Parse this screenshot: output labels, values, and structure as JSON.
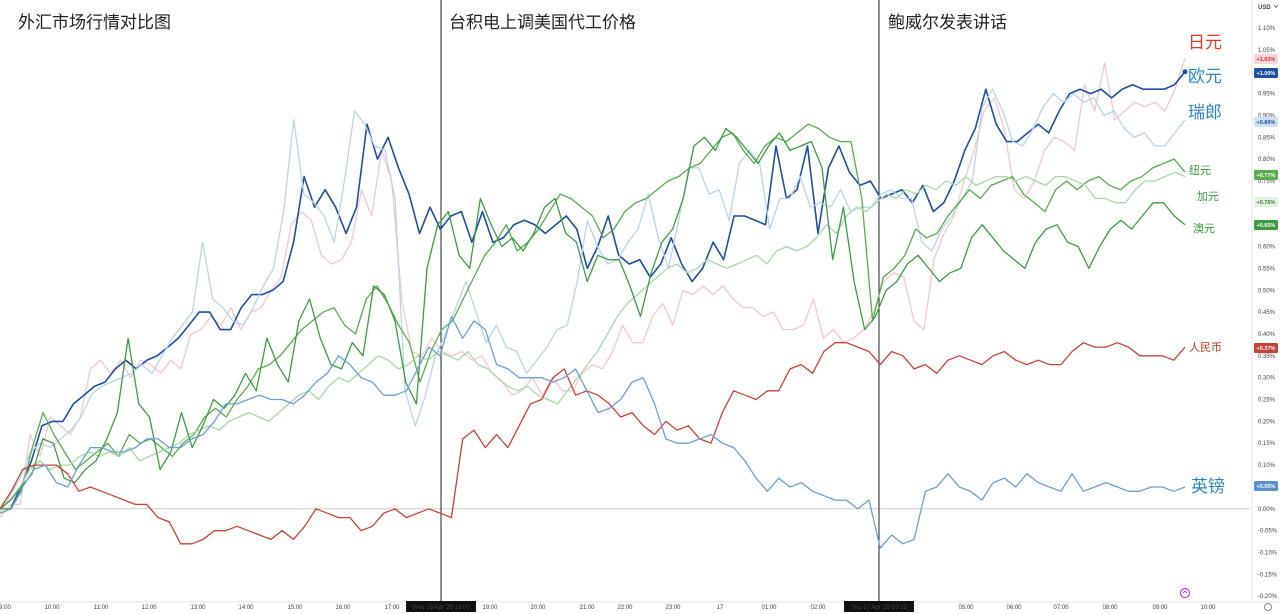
{
  "chart_data": {
    "type": "line",
    "panels": [
      {
        "title": "外汇市场行情对比图"
      },
      {
        "title": "台积电上调美国代工价格"
      },
      {
        "title": "鲍威尔发表讲话"
      }
    ],
    "currency_label": "USD",
    "y_ticks": [
      "1.10%",
      "1.05%",
      "1.00%",
      "0.95%",
      "0.90%",
      "0.85%",
      "0.80%",
      "0.75%",
      "0.70%",
      "0.65%",
      "0.60%",
      "0.55%",
      "0.50%",
      "0.45%",
      "0.40%",
      "0.35%",
      "0.30%",
      "0.25%",
      "0.20%",
      "0.15%",
      "0.10%",
      "0.05%",
      "0.00%",
      "-0.05%",
      "-0.10%",
      "-0.15%",
      "-0.20%"
    ],
    "ylim": [
      -0.2,
      1.1
    ],
    "x_ticks": [
      "9:00",
      "10:00",
      "11:00",
      "12:00",
      "13:00",
      "14:00",
      "15:00",
      "16:00",
      "17:00",
      "Wed 16 Apr '25 18:00",
      "19:00",
      "20:00",
      "21:00",
      "22:00",
      "23:00",
      "17",
      "01:00",
      "02:00",
      "Thu 17 Apr '25 03:15",
      "05:00",
      "06:00",
      "07:00",
      "08:00",
      "09:00",
      "10:00"
    ],
    "x_ticks_highlight": [
      9,
      18
    ],
    "series": [
      {
        "name": "日元",
        "color": "#f4c7cf",
        "label_color": "#e0392e",
        "label_size": 17,
        "badge": "+1.03%",
        "badge_bg": "#f7d3d8",
        "badge_fg": "#c0392b",
        "y": [
          -0.02,
          0.01,
          0.01,
          0.17,
          0.12,
          0.21,
          0.19,
          0.17,
          0.21,
          0.32,
          0.34,
          0.31,
          0.34,
          0.3,
          0.34,
          0.33,
          0.31,
          0.34,
          0.32,
          0.4,
          0.41,
          0.44,
          0.42,
          0.46,
          0.41,
          0.45,
          0.46,
          0.5,
          0.53,
          0.65,
          0.68,
          0.66,
          0.58,
          0.56,
          0.57,
          0.61,
          0.73,
          0.67,
          0.82,
          0.75,
          0.48,
          0.36,
          0.35,
          0.39,
          0.36,
          0.35,
          0.36,
          0.34,
          0.35,
          0.31,
          0.29,
          0.26,
          0.27,
          0.3,
          0.26,
          0.3,
          0.27,
          0.27,
          0.31,
          0.33,
          0.32,
          0.36,
          0.42,
          0.38,
          0.38,
          0.44,
          0.47,
          0.42,
          0.5,
          0.49,
          0.51,
          0.49,
          0.51,
          0.48,
          0.46,
          0.46,
          0.44,
          0.45,
          0.41,
          0.41,
          0.42,
          0.48,
          0.39,
          0.41,
          0.38,
          0.39,
          0.41,
          0.45,
          0.52,
          0.54,
          0.53,
          0.43,
          0.41,
          0.57,
          0.63,
          0.67,
          0.75,
          0.82,
          0.91,
          0.94,
          0.87,
          0.73,
          0.71,
          0.75,
          0.82,
          0.85,
          0.84,
          0.82,
          0.97,
          0.91,
          1.02,
          0.89,
          0.91,
          0.93,
          0.92,
          0.93,
          0.91,
          0.96,
          1.03
        ]
      },
      {
        "name": "欧元",
        "color": "#1e4fa0",
        "label_color": "#2e86c1",
        "label_size": 17,
        "badge": "+1.00%",
        "badge_bg": "#1e4fa0",
        "badge_fg": "#ffffff",
        "y": [
          0.0,
          0.0,
          0.05,
          0.11,
          0.19,
          0.2,
          0.2,
          0.24,
          0.26,
          0.28,
          0.29,
          0.32,
          0.34,
          0.32,
          0.34,
          0.35,
          0.37,
          0.39,
          0.42,
          0.45,
          0.45,
          0.41,
          0.41,
          0.46,
          0.49,
          0.49,
          0.5,
          0.52,
          0.61,
          0.76,
          0.69,
          0.73,
          0.69,
          0.63,
          0.69,
          0.88,
          0.8,
          0.85,
          0.78,
          0.72,
          0.63,
          0.69,
          0.64,
          0.67,
          0.68,
          0.61,
          0.68,
          0.61,
          0.62,
          0.65,
          0.66,
          0.65,
          0.63,
          0.65,
          0.67,
          0.64,
          0.55,
          0.6,
          0.67,
          0.58,
          0.56,
          0.57,
          0.53,
          0.56,
          0.62,
          0.56,
          0.52,
          0.55,
          0.61,
          0.57,
          0.67,
          0.67,
          0.66,
          0.65,
          0.83,
          0.71,
          0.73,
          0.83,
          0.63,
          0.78,
          0.83,
          0.77,
          0.74,
          0.75,
          0.71,
          0.72,
          0.73,
          0.7,
          0.74,
          0.68,
          0.7,
          0.75,
          0.82,
          0.87,
          0.96,
          0.88,
          0.84,
          0.84,
          0.86,
          0.88,
          0.86,
          0.91,
          0.95,
          0.96,
          0.95,
          0.96,
          0.94,
          0.96,
          0.97,
          0.96,
          0.96,
          0.96,
          0.97,
          1.0
        ]
      },
      {
        "name": "瑞郎",
        "color": "#b9d4ea",
        "label_color": "#2e86c1",
        "label_size": 17,
        "badge": "+0.89%",
        "badge_bg": "#cfe0f2",
        "badge_fg": "#1e4fa0",
        "y": [
          -0.01,
          0.03,
          0.07,
          0.13,
          0.15,
          0.14,
          0.16,
          0.18,
          0.21,
          0.26,
          0.28,
          0.29,
          0.3,
          0.31,
          0.33,
          0.31,
          0.35,
          0.39,
          0.42,
          0.45,
          0.61,
          0.48,
          0.46,
          0.43,
          0.42,
          0.46,
          0.51,
          0.55,
          0.68,
          0.89,
          0.72,
          0.7,
          0.67,
          0.61,
          0.75,
          0.91,
          0.88,
          0.83,
          0.82,
          0.71,
          0.27,
          0.19,
          0.26,
          0.35,
          0.4,
          0.46,
          0.52,
          0.45,
          0.38,
          0.42,
          0.37,
          0.36,
          0.31,
          0.34,
          0.37,
          0.41,
          0.42,
          0.52,
          0.66,
          0.6,
          0.56,
          0.57,
          0.61,
          0.64,
          0.72,
          0.62,
          0.55,
          0.66,
          0.78,
          0.78,
          0.72,
          0.73,
          0.66,
          0.79,
          0.82,
          0.79,
          0.64,
          0.71,
          0.71,
          0.76,
          0.69,
          0.7,
          0.69,
          0.73,
          0.68,
          0.69,
          0.69,
          0.72,
          0.73,
          0.71,
          0.71,
          0.61,
          0.59,
          0.64,
          0.67,
          0.71,
          0.75,
          0.92,
          0.96,
          0.91,
          0.84,
          0.83,
          0.87,
          0.92,
          0.95,
          0.93,
          0.95,
          0.93,
          0.94,
          0.9,
          0.91,
          0.87,
          0.85,
          0.86,
          0.83,
          0.83,
          0.86,
          0.89
        ]
      },
      {
        "name": "纽元",
        "color": "#5aab4f",
        "label_color": "#3a9a3a",
        "label_size": 11,
        "badge": "+0.77%",
        "badge_bg": "#5aab4f",
        "badge_fg": "#ffffff",
        "y": [
          0.0,
          0.0,
          0.04,
          0.14,
          0.22,
          0.17,
          0.13,
          0.09,
          0.11,
          0.13,
          0.15,
          0.12,
          0.17,
          0.15,
          0.16,
          0.14,
          0.12,
          0.15,
          0.17,
          0.21,
          0.23,
          0.21,
          0.25,
          0.28,
          0.32,
          0.33,
          0.35,
          0.38,
          0.41,
          0.43,
          0.45,
          0.46,
          0.42,
          0.4,
          0.48,
          0.51,
          0.47,
          0.42,
          0.38,
          0.29,
          0.36,
          0.41,
          0.43,
          0.48,
          0.53,
          0.58,
          0.61,
          0.65,
          0.59,
          0.61,
          0.64,
          0.68,
          0.72,
          0.71,
          0.69,
          0.67,
          0.62,
          0.64,
          0.68,
          0.7,
          0.71,
          0.73,
          0.75,
          0.76,
          0.78,
          0.79,
          0.82,
          0.85,
          0.86,
          0.82,
          0.79,
          0.83,
          0.85,
          0.84,
          0.86,
          0.88,
          0.87,
          0.85,
          0.84,
          0.84,
          0.71,
          0.43,
          0.53,
          0.55,
          0.58,
          0.64,
          0.62,
          0.63,
          0.67,
          0.7,
          0.73,
          0.71,
          0.74,
          0.75,
          0.76,
          0.72,
          0.7,
          0.68,
          0.73,
          0.75,
          0.73,
          0.75,
          0.76,
          0.74,
          0.73,
          0.75,
          0.76,
          0.78,
          0.79,
          0.8,
          0.77
        ]
      },
      {
        "name": "加元",
        "color": "#a8d8a8",
        "label_color": "#3a9a3a",
        "label_size": 11,
        "badge": "+0.76%",
        "badge_bg": "#e4f2e4",
        "badge_fg": "#2e7d32",
        "y": [
          0.0,
          0.02,
          0.05,
          0.09,
          0.11,
          0.09,
          0.1,
          0.1,
          0.12,
          0.13,
          0.12,
          0.13,
          0.12,
          0.14,
          0.11,
          0.12,
          0.13,
          0.14,
          0.15,
          0.17,
          0.18,
          0.19,
          0.18,
          0.2,
          0.21,
          0.22,
          0.21,
          0.2,
          0.22,
          0.24,
          0.26,
          0.27,
          0.25,
          0.28,
          0.3,
          0.29,
          0.31,
          0.33,
          0.35,
          0.34,
          0.32,
          0.33,
          0.35,
          0.34,
          0.36,
          0.35,
          0.34,
          0.36,
          0.33,
          0.32,
          0.3,
          0.28,
          0.27,
          0.28,
          0.26,
          0.25,
          0.24,
          0.27,
          0.3,
          0.33,
          0.36,
          0.4,
          0.44,
          0.47,
          0.49,
          0.51,
          0.53,
          0.55,
          0.56,
          0.54,
          0.55,
          0.57,
          0.56,
          0.55,
          0.56,
          0.57,
          0.58,
          0.56,
          0.59,
          0.6,
          0.59,
          0.6,
          0.62,
          0.65,
          0.63,
          0.67,
          0.69,
          0.68,
          0.7,
          0.72,
          0.71,
          0.73,
          0.72,
          0.74,
          0.73,
          0.75,
          0.74,
          0.76,
          0.74,
          0.75,
          0.76,
          0.76,
          0.75,
          0.76,
          0.75,
          0.74,
          0.76,
          0.76,
          0.75,
          0.74,
          0.71,
          0.71,
          0.7,
          0.7,
          0.73,
          0.75,
          0.75,
          0.76,
          0.77,
          0.76
        ]
      },
      {
        "name": "澳元",
        "color": "#3f9a44",
        "label_color": "#3a9a3a",
        "label_size": 11,
        "badge": "+0.65%",
        "badge_bg": "#3f9a44",
        "badge_fg": "#ffffff",
        "y": [
          0.0,
          0.02,
          0.05,
          0.08,
          0.16,
          0.15,
          0.07,
          0.06,
          0.09,
          0.11,
          0.16,
          0.22,
          0.39,
          0.24,
          0.21,
          0.09,
          0.13,
          0.22,
          0.14,
          0.19,
          0.25,
          0.23,
          0.26,
          0.31,
          0.27,
          0.39,
          0.33,
          0.29,
          0.43,
          0.48,
          0.39,
          0.33,
          0.32,
          0.38,
          0.35,
          0.51,
          0.49,
          0.43,
          0.29,
          0.24,
          0.55,
          0.65,
          0.68,
          0.58,
          0.55,
          0.71,
          0.65,
          0.6,
          0.62,
          0.59,
          0.63,
          0.69,
          0.71,
          0.63,
          0.61,
          0.52,
          0.58,
          0.57,
          0.57,
          0.51,
          0.44,
          0.54,
          0.61,
          0.64,
          0.71,
          0.83,
          0.85,
          0.82,
          0.87,
          0.85,
          0.82,
          0.79,
          0.83,
          0.86,
          0.82,
          0.83,
          0.84,
          0.78,
          0.57,
          0.69,
          0.52,
          0.41,
          0.44,
          0.5,
          0.52,
          0.56,
          0.58,
          0.55,
          0.52,
          0.54,
          0.55,
          0.62,
          0.65,
          0.62,
          0.59,
          0.57,
          0.55,
          0.61,
          0.64,
          0.65,
          0.61,
          0.6,
          0.55,
          0.6,
          0.64,
          0.66,
          0.64,
          0.67,
          0.7,
          0.7,
          0.67,
          0.65
        ]
      },
      {
        "name": "人民币",
        "color": "#c8423a",
        "label_color": "#c0392b",
        "label_size": 11,
        "badge": "+0.37%",
        "badge_bg": "#c8423a",
        "badge_fg": "#ffffff",
        "y": [
          0.0,
          0.04,
          0.09,
          0.1,
          0.1,
          0.1,
          0.08,
          0.04,
          0.05,
          0.04,
          0.03,
          0.02,
          0.01,
          0.01,
          -0.02,
          -0.03,
          -0.08,
          -0.08,
          -0.07,
          -0.05,
          -0.05,
          -0.04,
          -0.05,
          -0.06,
          -0.07,
          -0.05,
          -0.07,
          -0.04,
          0.0,
          -0.01,
          -0.02,
          -0.02,
          -0.05,
          -0.04,
          -0.01,
          0.0,
          -0.02,
          -0.01,
          0.0,
          -0.01,
          -0.02,
          0.16,
          0.18,
          0.14,
          0.17,
          0.14,
          0.19,
          0.24,
          0.25,
          0.3,
          0.32,
          0.26,
          0.27,
          0.26,
          0.24,
          0.21,
          0.22,
          0.19,
          0.17,
          0.2,
          0.18,
          0.19,
          0.16,
          0.15,
          0.22,
          0.27,
          0.26,
          0.25,
          0.27,
          0.27,
          0.32,
          0.33,
          0.31,
          0.36,
          0.38,
          0.38,
          0.37,
          0.36,
          0.33,
          0.36,
          0.35,
          0.32,
          0.33,
          0.31,
          0.34,
          0.35,
          0.34,
          0.33,
          0.35,
          0.36,
          0.34,
          0.33,
          0.34,
          0.33,
          0.33,
          0.36,
          0.38,
          0.37,
          0.37,
          0.38,
          0.37,
          0.35,
          0.35,
          0.35,
          0.34,
          0.37
        ]
      },
      {
        "name": "英镑",
        "color": "#6da0cf",
        "label_color": "#2e86c1",
        "label_size": 17,
        "badge": "+0.05%",
        "badge_bg": "#5b8fd6",
        "badge_fg": "#ffffff",
        "y": [
          -0.01,
          0.0,
          0.05,
          0.09,
          0.1,
          0.06,
          0.05,
          0.1,
          0.14,
          0.14,
          0.13,
          0.13,
          0.14,
          0.16,
          0.16,
          0.14,
          0.14,
          0.16,
          0.17,
          0.2,
          0.24,
          0.24,
          0.25,
          0.26,
          0.25,
          0.25,
          0.24,
          0.26,
          0.29,
          0.31,
          0.35,
          0.33,
          0.3,
          0.29,
          0.26,
          0.26,
          0.27,
          0.32,
          0.37,
          0.35,
          0.44,
          0.39,
          0.43,
          0.41,
          0.33,
          0.32,
          0.3,
          0.3,
          0.3,
          0.29,
          0.3,
          0.32,
          0.27,
          0.22,
          0.23,
          0.25,
          0.29,
          0.3,
          0.24,
          0.16,
          0.15,
          0.15,
          0.16,
          0.17,
          0.15,
          0.14,
          0.11,
          0.07,
          0.04,
          0.07,
          0.05,
          0.06,
          0.04,
          0.03,
          0.02,
          0.02,
          0.0,
          0.02,
          -0.09,
          -0.06,
          -0.08,
          -0.07,
          0.04,
          0.05,
          0.08,
          0.05,
          0.04,
          0.02,
          0.06,
          0.07,
          0.05,
          0.08,
          0.06,
          0.05,
          0.04,
          0.08,
          0.04,
          0.05,
          0.06,
          0.05,
          0.04,
          0.04,
          0.05,
          0.05,
          0.04,
          0.05
        ]
      }
    ]
  }
}
